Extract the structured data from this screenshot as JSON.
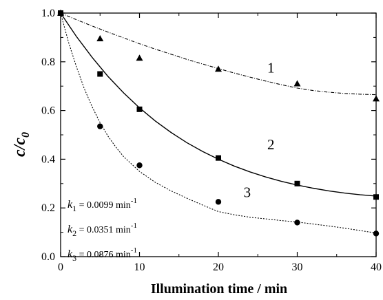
{
  "chart_data": {
    "type": "scatter",
    "xlabel": "Illumination time / min",
    "ylabel": "c/c",
    "ylabel_sub": "0",
    "xlim": [
      0,
      40
    ],
    "ylim": [
      0.0,
      1.0
    ],
    "xticks": [
      "0",
      "10",
      "20",
      "30",
      "40"
    ],
    "yticks": [
      "0.0",
      "0.2",
      "0.4",
      "0.6",
      "0.8",
      "1.0"
    ],
    "series": [
      {
        "name": "1",
        "marker": "triangle",
        "line_style": "dash-dot",
        "x": [
          0,
          5,
          10,
          20,
          30,
          40
        ],
        "y": [
          1.0,
          0.895,
          0.815,
          0.77,
          0.71,
          0.648
        ],
        "fit": [
          [
            0,
            1.0
          ],
          [
            2,
            0.973
          ],
          [
            4,
            0.947
          ],
          [
            6,
            0.922
          ],
          [
            8,
            0.898
          ],
          [
            10,
            0.874
          ],
          [
            12,
            0.852
          ],
          [
            14,
            0.831
          ],
          [
            16,
            0.81
          ],
          [
            18,
            0.791
          ],
          [
            20,
            0.772
          ],
          [
            22,
            0.754
          ],
          [
            24,
            0.737
          ],
          [
            26,
            0.721
          ],
          [
            28,
            0.706
          ],
          [
            30,
            0.692
          ],
          [
            32,
            0.682
          ],
          [
            34,
            0.675
          ],
          [
            36,
            0.67
          ],
          [
            38,
            0.667
          ],
          [
            40,
            0.665
          ]
        ]
      },
      {
        "name": "2",
        "marker": "square",
        "line_style": "solid",
        "x": [
          0,
          5,
          10,
          20,
          30,
          40
        ],
        "y": [
          1.0,
          0.75,
          0.605,
          0.405,
          0.3,
          0.245
        ],
        "fit": [
          [
            0,
            1.0
          ],
          [
            2,
            0.904
          ],
          [
            4,
            0.818
          ],
          [
            6,
            0.74
          ],
          [
            8,
            0.672
          ],
          [
            10,
            0.611
          ],
          [
            12,
            0.557
          ],
          [
            14,
            0.51
          ],
          [
            16,
            0.468
          ],
          [
            18,
            0.432
          ],
          [
            20,
            0.4
          ],
          [
            22,
            0.372
          ],
          [
            24,
            0.348
          ],
          [
            26,
            0.327
          ],
          [
            28,
            0.309
          ],
          [
            30,
            0.294
          ],
          [
            32,
            0.281
          ],
          [
            34,
            0.27
          ],
          [
            36,
            0.261
          ],
          [
            38,
            0.254
          ],
          [
            40,
            0.249
          ]
        ]
      },
      {
        "name": "3",
        "marker": "circle",
        "line_style": "dotted",
        "x": [
          0,
          5,
          10,
          20,
          30,
          40
        ],
        "y": [
          1.0,
          0.535,
          0.375,
          0.225,
          0.14,
          0.095
        ],
        "fit": [
          [
            0,
            1.0
          ],
          [
            1,
            0.88
          ],
          [
            2,
            0.78
          ],
          [
            3,
            0.69
          ],
          [
            4,
            0.615
          ],
          [
            5,
            0.55
          ],
          [
            6,
            0.495
          ],
          [
            7,
            0.45
          ],
          [
            8,
            0.41
          ],
          [
            9,
            0.38
          ],
          [
            10,
            0.35
          ],
          [
            12,
            0.305
          ],
          [
            14,
            0.27
          ],
          [
            16,
            0.24
          ],
          [
            18,
            0.212
          ],
          [
            20,
            0.185
          ],
          [
            22,
            0.172
          ],
          [
            24,
            0.162
          ],
          [
            26,
            0.155
          ],
          [
            28,
            0.148
          ],
          [
            30,
            0.142
          ],
          [
            32,
            0.134
          ],
          [
            34,
            0.126
          ],
          [
            36,
            0.117
          ],
          [
            38,
            0.107
          ],
          [
            40,
            0.097
          ]
        ]
      }
    ],
    "rate_constants": [
      {
        "k": "k",
        "sub": "1",
        "value": " = 0.0099  min",
        "sup": "-1"
      },
      {
        "k": "k",
        "sub": "2",
        "value": " = 0.0351  min",
        "sup": "-1"
      },
      {
        "k": "k",
        "sub": "3",
        "value": " = 0.0876  min",
        "sup": "-1"
      }
    ],
    "grid": false,
    "colors": {
      "axis": "#000000",
      "marker": "#000000",
      "line": "#000000"
    }
  }
}
